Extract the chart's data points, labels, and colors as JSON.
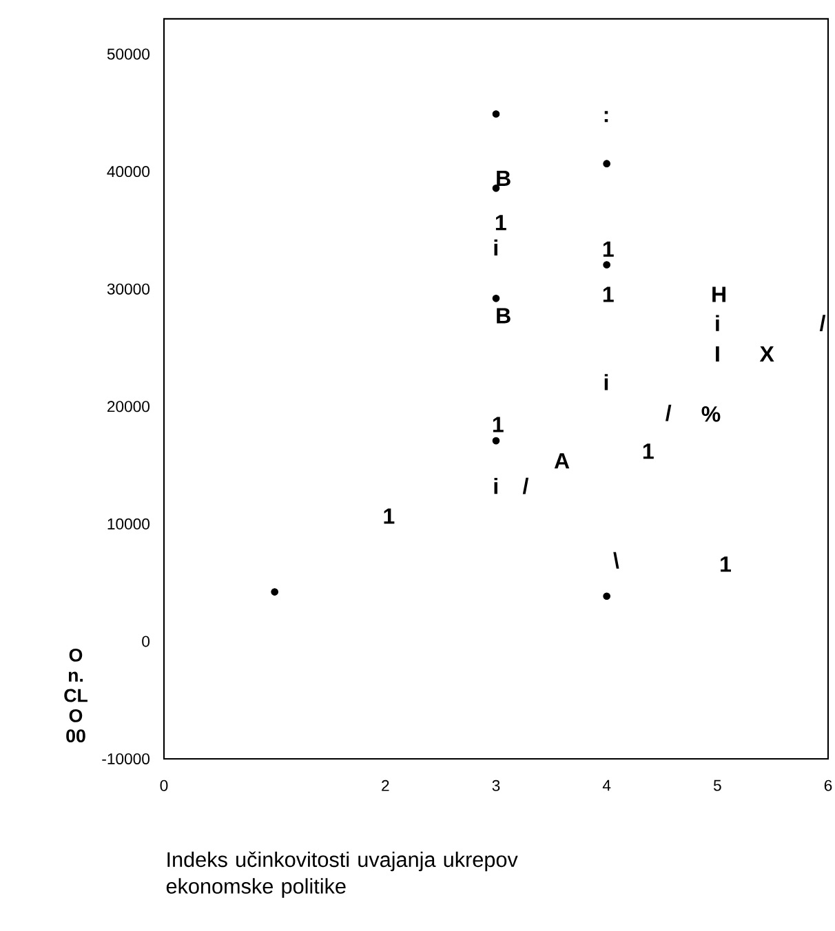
{
  "chart_data": {
    "type": "scatter",
    "xlabel": "Indeks učinkovitosti uvajanja ukrepov ekonomske politike",
    "xlim": [
      0,
      6
    ],
    "xticks": [
      0,
      2,
      3,
      4,
      5,
      6
    ],
    "ylim": [
      -10000,
      53000
    ],
    "yticks": [
      -10000,
      0,
      10000,
      20000,
      30000,
      40000,
      50000
    ],
    "x": [
      3.0,
      4.0,
      3.0,
      4.0,
      3.0,
      3.0,
      1.0,
      4.0
    ],
    "values": [
      44900,
      40670,
      38580,
      32060,
      29200,
      17080,
      4210,
      3850
    ],
    "color": "#000000",
    "annotations": [
      ":",
      "B",
      "1",
      "i",
      "1",
      "1",
      "H",
      "B",
      "i",
      "/",
      "I",
      "X",
      "i",
      "/",
      "%",
      "1",
      "A",
      "1",
      "i",
      "/",
      "1",
      "\\",
      "1",
      "O",
      "n.",
      "CL",
      "O",
      "00"
    ]
  }
}
